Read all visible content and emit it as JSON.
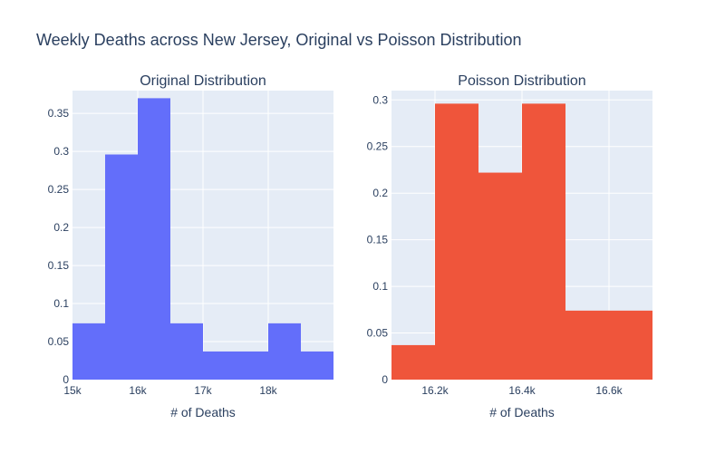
{
  "title": "Weekly Deaths across New Jersey, Original vs Poisson Distribution",
  "chart_data": [
    {
      "type": "bar",
      "subtitle": "Original Distribution",
      "xlabel": "# of Deaths",
      "ylabel": "",
      "color": "#636efa",
      "xlim": [
        15000,
        19000
      ],
      "ylim": [
        0,
        0.38
      ],
      "x_ticks": [
        15000,
        16000,
        17000,
        18000
      ],
      "x_tick_labels": [
        "15k",
        "16k",
        "17k",
        "18k"
      ],
      "y_ticks": [
        0,
        0.05,
        0.1,
        0.15,
        0.2,
        0.25,
        0.3,
        0.35
      ],
      "y_tick_labels": [
        "0",
        "0.05",
        "0.1",
        "0.15",
        "0.2",
        "0.25",
        "0.3",
        "0.35"
      ],
      "bins": [
        {
          "x0": 15000,
          "x1": 15500,
          "value": 0.074
        },
        {
          "x0": 15500,
          "x1": 16000,
          "value": 0.296
        },
        {
          "x0": 16000,
          "x1": 16500,
          "value": 0.37
        },
        {
          "x0": 16500,
          "x1": 17000,
          "value": 0.074
        },
        {
          "x0": 17000,
          "x1": 17500,
          "value": 0.037
        },
        {
          "x0": 17500,
          "x1": 18000,
          "value": 0.037
        },
        {
          "x0": 18000,
          "x1": 18500,
          "value": 0.074
        },
        {
          "x0": 18500,
          "x1": 19000,
          "value": 0.037
        }
      ],
      "grid": true,
      "legend": "none"
    },
    {
      "type": "bar",
      "subtitle": "Poisson Distribution",
      "xlabel": "# of Deaths",
      "ylabel": "",
      "color": "#ef553b",
      "xlim": [
        16100,
        16700
      ],
      "ylim": [
        0,
        0.31
      ],
      "x_ticks": [
        16200,
        16400,
        16600
      ],
      "x_tick_labels": [
        "16.2k",
        "16.4k",
        "16.6k"
      ],
      "y_ticks": [
        0,
        0.05,
        0.1,
        0.15,
        0.2,
        0.25,
        0.3
      ],
      "y_tick_labels": [
        "0",
        "0.05",
        "0.1",
        "0.15",
        "0.2",
        "0.25",
        "0.3"
      ],
      "bins": [
        {
          "x0": 16100,
          "x1": 16200,
          "value": 0.037
        },
        {
          "x0": 16200,
          "x1": 16300,
          "value": 0.296
        },
        {
          "x0": 16300,
          "x1": 16400,
          "value": 0.222
        },
        {
          "x0": 16400,
          "x1": 16500,
          "value": 0.296
        },
        {
          "x0": 16500,
          "x1": 16700,
          "value": 0.074
        }
      ],
      "grid": true,
      "legend": "none"
    }
  ]
}
